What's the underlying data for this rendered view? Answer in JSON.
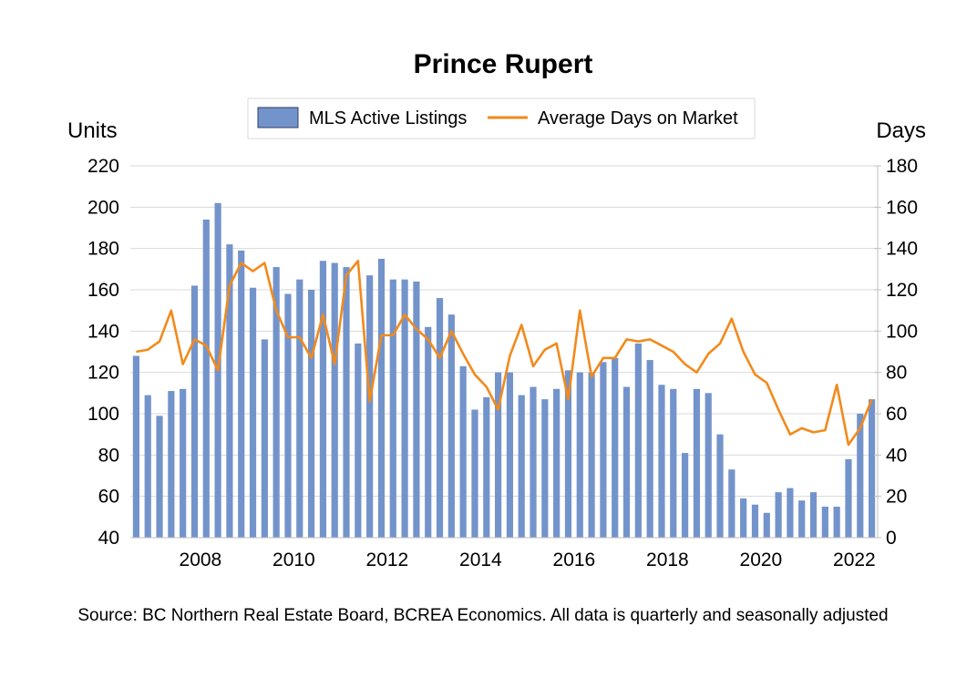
{
  "chart_data": {
    "type": "bar+line",
    "title": "Prince Rupert",
    "ylabel_left": "Units",
    "ylabel_right": "Days",
    "legend": [
      "MLS Active Listings",
      "Average Days on Market"
    ],
    "legend_position": "top-center",
    "source": "Source: BC Northern Real Estate Board, BCREA Economics. All data is quarterly and seasonally adjusted",
    "x_ticks": [
      "2008",
      "2010",
      "2012",
      "2014",
      "2016",
      "2018",
      "2020",
      "2022"
    ],
    "y_left_ticks": [
      40,
      60,
      80,
      100,
      120,
      140,
      160,
      180,
      200,
      220
    ],
    "y_right_ticks": [
      0,
      20,
      40,
      60,
      80,
      100,
      120,
      140,
      160,
      180
    ],
    "ylim_left": [
      40,
      220
    ],
    "ylim_right": [
      0,
      180
    ],
    "grid": "horizontal",
    "colors": {
      "bars": "#7393CB",
      "bar_edge": "#5b7bb8",
      "line": "#F28A1C",
      "grid": "#d9d9d9"
    },
    "x": [
      "2006 Q4",
      "2007 Q1",
      "2007 Q2",
      "2007 Q3",
      "2007 Q4",
      "2008 Q1",
      "2008 Q2",
      "2008 Q3",
      "2008 Q4",
      "2009 Q1",
      "2009 Q2",
      "2009 Q3",
      "2009 Q4",
      "2010 Q1",
      "2010 Q2",
      "2010 Q3",
      "2010 Q4",
      "2011 Q1",
      "2011 Q2",
      "2011 Q3",
      "2011 Q4",
      "2012 Q1",
      "2012 Q2",
      "2012 Q3",
      "2012 Q4",
      "2013 Q1",
      "2013 Q2",
      "2013 Q3",
      "2013 Q4",
      "2014 Q1",
      "2014 Q2",
      "2014 Q3",
      "2014 Q4",
      "2015 Q1",
      "2015 Q2",
      "2015 Q3",
      "2015 Q4",
      "2016 Q1",
      "2016 Q2",
      "2016 Q3",
      "2016 Q4",
      "2017 Q1",
      "2017 Q2",
      "2017 Q3",
      "2017 Q4",
      "2018 Q1",
      "2018 Q2",
      "2018 Q3",
      "2018 Q4",
      "2019 Q1",
      "2019 Q2",
      "2019 Q3",
      "2019 Q4",
      "2020 Q1",
      "2020 Q2",
      "2020 Q3",
      "2020 Q4",
      "2021 Q1",
      "2021 Q2",
      "2021 Q3",
      "2021 Q4",
      "2022 Q1",
      "2022 Q2",
      "2022 Q3"
    ],
    "series": [
      {
        "name": "MLS Active Listings",
        "type": "bar",
        "axis": "left",
        "values": [
          128,
          109,
          99,
          111,
          112,
          162,
          194,
          202,
          182,
          179,
          161,
          136,
          171,
          158,
          165,
          160,
          174,
          173,
          171,
          134,
          167,
          175,
          165,
          165,
          164,
          142,
          156,
          148,
          123,
          102,
          108,
          120,
          120,
          109,
          113,
          107,
          112,
          121,
          120,
          120,
          125,
          127,
          113,
          134,
          126,
          114,
          112,
          81,
          112,
          110,
          90,
          73,
          59,
          56,
          52,
          62,
          64,
          58,
          62,
          55,
          55,
          78,
          100,
          107
        ]
      },
      {
        "name": "Average Days on Market",
        "type": "line",
        "axis": "right",
        "values": [
          90,
          91,
          95,
          110,
          84,
          96,
          93,
          81,
          122,
          133,
          129,
          133,
          110,
          97,
          97,
          87,
          108,
          84,
          127,
          134,
          66,
          98,
          98,
          108,
          101,
          96,
          87,
          100,
          89,
          79,
          73,
          62,
          88,
          103,
          83,
          91,
          94,
          67,
          110,
          78,
          87,
          87,
          96,
          95,
          96,
          93,
          90,
          84,
          80,
          89,
          94,
          106,
          90,
          79,
          75,
          62,
          50,
          53,
          51,
          52,
          74,
          45,
          53,
          67
        ]
      }
    ]
  }
}
